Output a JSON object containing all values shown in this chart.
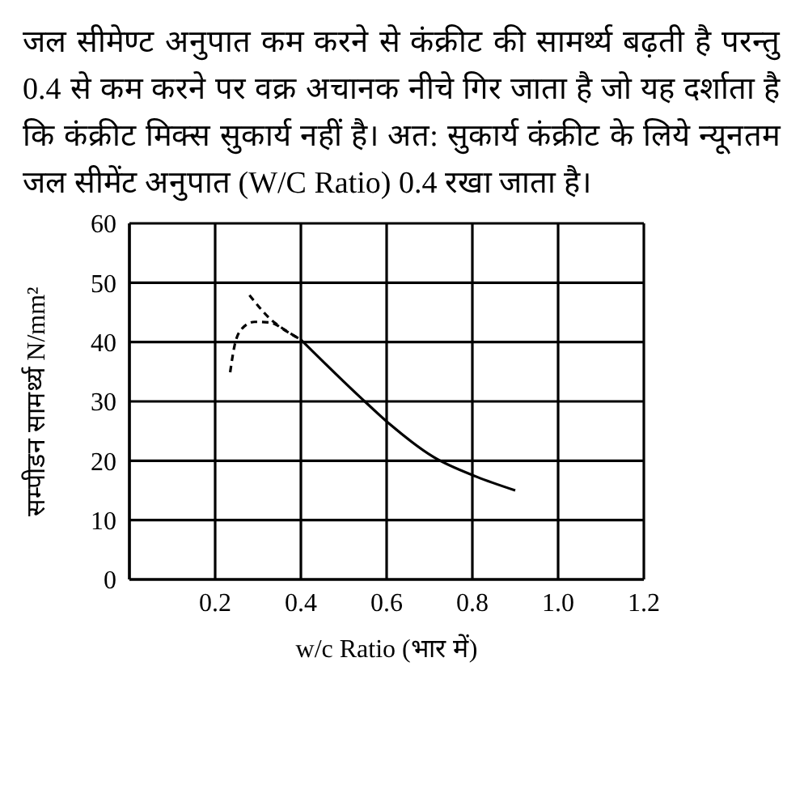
{
  "chart_data": {
    "type": "line",
    "title": "जल सीमेण्ट अनुपात कम करने से कंक्रीट की सामर्थ्य बढ़ती है परन्तु 0.4 से कम करने पर वक्र अचानक नीचे गिर जाता है जो यह दर्शाता है कि कंक्रीट मिक्स सुकार्य नहीं है। अत: सुकार्य कंक्रीट के लिये न्यूनतम जल सीमेंट अनुपात (W/C Ratio) 0.4 रखा जाता है।",
    "xlabel": "w/c Ratio (भार में)",
    "ylabel": "सम्पीडन सामर्थ्य N/mm²",
    "xlim": [
      0,
      1.2
    ],
    "xticks": [
      0.2,
      0.4,
      0.6,
      0.8,
      {
        "value": 1,
        "label": "1.0"
      },
      1.2
    ],
    "ylim": [
      0,
      60
    ],
    "yticks": [
      0,
      10,
      20,
      30,
      40,
      50,
      60
    ],
    "grid": true,
    "marker": "none",
    "series": [
      {
        "color": "#000000",
        "line_style": "solid",
        "x": [
          0.4,
          0.54,
          0.61,
          0.71,
          0.81,
          0.9
        ],
        "values": [
          40.4,
          30.6,
          26,
          20.6,
          17.3,
          15
        ]
      },
      {
        "color": "#000000",
        "line_style": "dashed",
        "x": [
          0.28,
          0.33,
          0.37,
          0.4
        ],
        "values": [
          47.9,
          43.8,
          41.7,
          40.4
        ]
      },
      {
        "color": "#000000",
        "line_style": "dashed",
        "x": [
          0.235,
          0.245,
          0.263,
          0.292,
          0.327,
          0.369,
          0.4
        ],
        "values": [
          34.9,
          39.3,
          42.3,
          43.4,
          43.3,
          41.7,
          40.4
        ]
      }
    ]
  }
}
